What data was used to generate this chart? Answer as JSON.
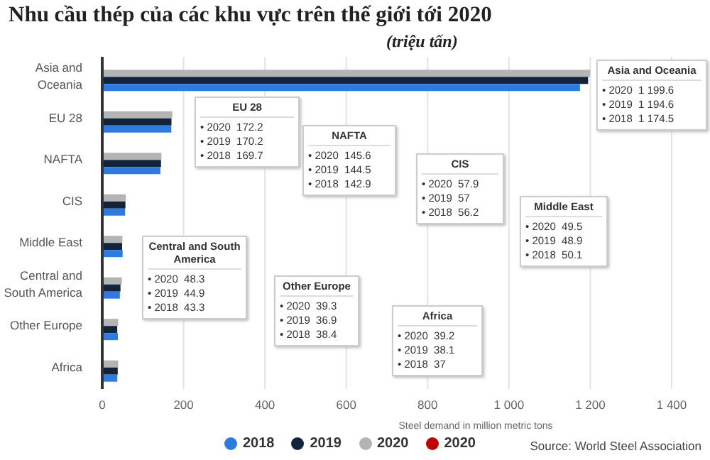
{
  "chart_data": {
    "type": "bar",
    "orientation": "horizontal",
    "title": "Nhu cầu thép của các khu vực trên thế giới tới 2020",
    "subtitle": "(triệu tấn)",
    "xlabel": "Steel demand in million metric tons",
    "categories": [
      "Asia and Oceania",
      "EU 28",
      "NAFTA",
      "CIS",
      "Middle East",
      "Central and South America",
      "Other Europe",
      "Africa"
    ],
    "series": [
      {
        "name": "2018",
        "color": "#2f7ae0",
        "values": [
          1174.5,
          169.7,
          142.9,
          56.2,
          50.1,
          43.3,
          38.4,
          37
        ]
      },
      {
        "name": "2019",
        "color": "#13233a",
        "values": [
          1194.6,
          170.2,
          144.5,
          57,
          48.9,
          44.9,
          36.9,
          38.1
        ]
      },
      {
        "name": "2020",
        "color": "#b4b4b4",
        "values": [
          1199.6,
          172.2,
          145.6,
          57.9,
          49.5,
          48.3,
          39.3,
          39.2
        ]
      },
      {
        "name": "2020",
        "color": "#c00000",
        "values": [
          null,
          null,
          null,
          null,
          null,
          null,
          null,
          null
        ]
      }
    ],
    "xlim": [
      0,
      1400
    ],
    "xticks": [
      0,
      200,
      400,
      600,
      800,
      {
        "value": 1000,
        "label": "1 000"
      },
      {
        "value": 1200,
        "label": "1 200"
      },
      {
        "value": 1400,
        "label": "1 400"
      }
    ],
    "grid": "x",
    "legend": "bottom",
    "annotations": [
      "Asia and Oceania\n• 2020  1 199.6\n• 2019  1 194.6\n• 2018  1 174.5",
      "EU 28\n• 2020  172.2\n• 2019  170.2\n• 2018  169.7",
      "NAFTA\n• 2020  145.6\n• 2019  144.5\n• 2018  142.9",
      "CIS\n• 2020  57.9\n• 2019  57\n• 2018  56.2",
      "Middle East\n• 2020  49.5\n• 2019  48.9\n• 2018  50.1",
      "Central and South America\n• 2020  48.3\n• 2019  44.9\n• 2018  43.3",
      "Other Europe\n• 2020  39.3\n• 2019  36.9\n• 2018  38.4",
      "Africa\n• 2020  39.2\n• 2019  38.1\n• 2018  37",
      "Source: World Steel Association"
    ]
  }
}
